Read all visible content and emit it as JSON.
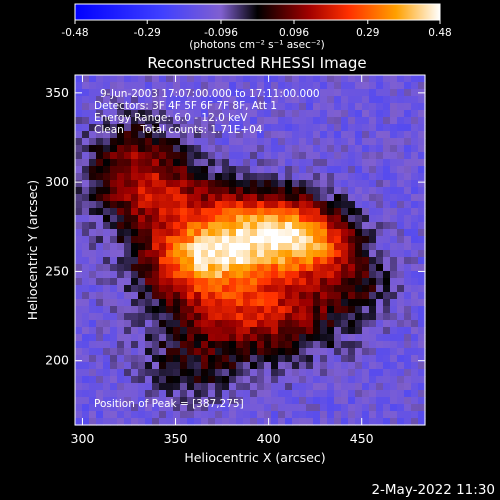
{
  "chart_data": {
    "type": "heatmap",
    "title": "Reconstructed RHESSI Image",
    "xlabel": "Heliocentric X (arcsec)",
    "ylabel": "Heliocentric Y (arcsec)",
    "xlim": [
      296,
      484
    ],
    "ylim": [
      164,
      360
    ],
    "xticks": [
      300,
      350,
      400,
      450
    ],
    "yticks": [
      200,
      250,
      300,
      350
    ],
    "colorbar": {
      "ticks": [
        -0.48,
        -0.29,
        -0.096,
        0.096,
        0.29,
        0.48
      ],
      "tick_labels": [
        "-0.48",
        "-0.29",
        "-0.096",
        "0.096",
        "0.29",
        "0.48"
      ],
      "range": [
        -0.48,
        0.48
      ],
      "unit": "(photons cm⁻² s⁻¹ asec⁻²)"
    },
    "annotations": {
      "time": "9-Jun-2003 17:07:00.000 to 17:11:00.000",
      "detectors": "Detectors: 3F 4F 5F 6F 7F 8F, Att 1",
      "energy": "Energy Range: 6.0 - 12.0 keV",
      "clean": "Clean     Total counts: 1.71E+04",
      "peak": "Position of Peak = [387,275]"
    },
    "peak_position": [
      387,
      275
    ],
    "sources": [
      {
        "x": 392,
        "y": 273,
        "sx": 26,
        "sy": 16,
        "amp": 0.45
      },
      {
        "x": 362,
        "y": 257,
        "sx": 22,
        "sy": 13,
        "amp": 0.36
      },
      {
        "x": 422,
        "y": 266,
        "sx": 17,
        "sy": 13,
        "amp": 0.33
      },
      {
        "x": 338,
        "y": 294,
        "sx": 22,
        "sy": 17,
        "amp": 0.26
      },
      {
        "x": 375,
        "y": 232,
        "sx": 26,
        "sy": 15,
        "amp": 0.22
      },
      {
        "x": 408,
        "y": 224,
        "sx": 24,
        "sy": 17,
        "amp": 0.2
      },
      {
        "x": 326,
        "y": 318,
        "sx": 16,
        "sy": 16,
        "amp": 0.14
      },
      {
        "x": 445,
        "y": 243,
        "sx": 16,
        "sy": 12,
        "amp": 0.14
      },
      {
        "x": 360,
        "y": 198,
        "sx": 20,
        "sy": 14,
        "amp": 0.14
      }
    ],
    "background_level": -0.14,
    "footer_date": "2-May-2022 11:30"
  }
}
